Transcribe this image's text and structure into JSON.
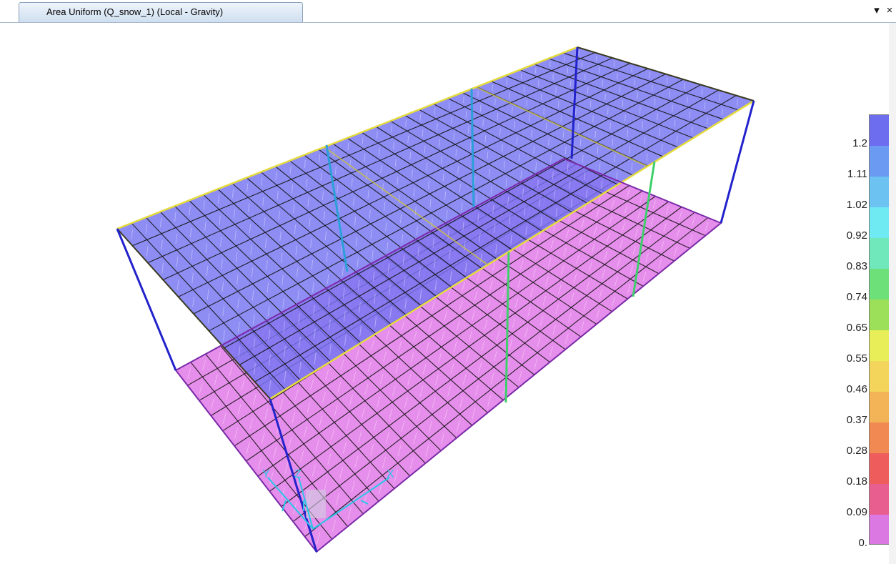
{
  "window": {
    "tab_title": "Area Uniform (Q_snow_1) (Local - Gravity)",
    "pin_glyph": "▾",
    "close_glyph": "×"
  },
  "legend": {
    "labels": [
      "1.2",
      "1.11",
      "1.02",
      "0.92",
      "0.83",
      "0.74",
      "0.65",
      "0.55",
      "0.46",
      "0.37",
      "0.28",
      "0.18",
      "0.09",
      "0."
    ],
    "colors": [
      "#6d6df0",
      "#6a9af2",
      "#6cc2f0",
      "#70eaf2",
      "#70e8bc",
      "#6ee07a",
      "#9ce05a",
      "#e8ee58",
      "#f2d55a",
      "#f2b456",
      "#f08a52",
      "#ee5c5c",
      "#e85e8e",
      "#dc78e2"
    ]
  },
  "model": {
    "roof_color": "#7474f2",
    "slab_color": "#e27ae8",
    "edge_yellow": "#e6dc3c",
    "edge_blue": "#2222cc",
    "mesh_color": "#111111",
    "axes": {
      "x_label": "X",
      "y_label": "Y",
      "z_label": "Z"
    }
  }
}
